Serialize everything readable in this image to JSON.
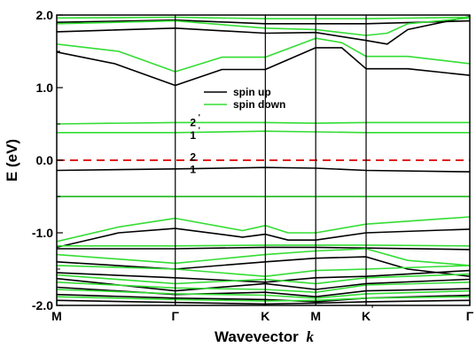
{
  "chart_data": {
    "type": "line",
    "xlabel": "Wavevector",
    "xlabel_italic": "k",
    "ylabel": "E (eV)",
    "ylim": [
      -2.0,
      2.0
    ],
    "yticks": [
      {
        "value": 2.0,
        "label": "2.0"
      },
      {
        "value": 1.0,
        "label": "1.0"
      },
      {
        "value": 0.0,
        "label": "0.0"
      },
      {
        "value": -1.0,
        "label": "-1.0"
      },
      {
        "value": -2.0,
        "label": "-2.0"
      }
    ],
    "xlim": [
      0,
      1
    ],
    "kpoints": [
      {
        "x": 0.0,
        "label": "M",
        "prime": ""
      },
      {
        "x": 0.287,
        "label": "Γ",
        "prime": ""
      },
      {
        "x": 0.505,
        "label": "K",
        "prime": ""
      },
      {
        "x": 0.627,
        "label": "M",
        "prime": ""
      },
      {
        "x": 0.749,
        "label": "K",
        "prime": "'"
      },
      {
        "x": 1.0,
        "label": "Γ",
        "prime": ""
      }
    ],
    "fermi_level": 0.0,
    "legend": {
      "position": "upper-right-inside",
      "entries": [
        {
          "name": "spin up",
          "color": "#000000"
        },
        {
          "name": "spin down",
          "color": "#33dd33"
        }
      ]
    },
    "annotations": [
      {
        "text": "2",
        "prime": "'",
        "x": 0.33,
        "y": 0.52
      },
      {
        "text": "1",
        "prime": "'",
        "x": 0.33,
        "y": 0.34
      },
      {
        "text": "2",
        "prime": "",
        "x": 0.33,
        "y": 0.04
      },
      {
        "text": "1",
        "prime": "",
        "x": 0.33,
        "y": -0.13
      }
    ],
    "series": [
      {
        "name": "spin up",
        "color": "#000000",
        "x": [
          0,
          0.14,
          0.287,
          0.4,
          0.505,
          0.627,
          0.69,
          0.749,
          0.85,
          1.0
        ],
        "y": [
          1.49,
          1.33,
          1.03,
          1.25,
          1.25,
          1.55,
          1.55,
          1.26,
          1.26,
          1.17
        ]
      },
      {
        "name": "spin up",
        "color": "#000000",
        "x": [
          0,
          0.287,
          0.505,
          0.627,
          0.749,
          0.8,
          0.85,
          1.0
        ],
        "y": [
          1.77,
          1.82,
          1.75,
          1.76,
          1.65,
          1.6,
          1.8,
          1.98
        ]
      },
      {
        "name": "spin up",
        "color": "#000000",
        "x": [
          0,
          0.287,
          0.505,
          0.627,
          0.749,
          1.0
        ],
        "y": [
          1.9,
          1.93,
          1.88,
          1.88,
          1.88,
          1.92
        ]
      },
      {
        "name": "spin up",
        "color": "#000000",
        "x": [
          0,
          0.287,
          0.505,
          0.627,
          0.749,
          1.0
        ],
        "y": [
          -0.14,
          -0.12,
          -0.1,
          -0.11,
          -0.14,
          -0.16
        ]
      },
      {
        "name": "spin up",
        "color": "#000000",
        "x": [
          0,
          0.287,
          0.505,
          0.627,
          0.749,
          1.0
        ],
        "y": [
          -0.5,
          -0.5,
          -0.5,
          -0.5,
          -0.5,
          -0.5
        ]
      },
      {
        "name": "spin up",
        "color": "#000000",
        "x": [
          0,
          0.15,
          0.287,
          0.45,
          0.505,
          0.56,
          0.627,
          0.749,
          1.0
        ],
        "y": [
          -1.2,
          -1.0,
          -0.94,
          -1.06,
          -1.02,
          -1.1,
          -1.1,
          -1.0,
          -0.95
        ]
      },
      {
        "name": "spin up",
        "color": "#000000",
        "x": [
          0,
          0.287,
          0.505,
          0.627,
          0.749,
          1.0
        ],
        "y": [
          -1.22,
          -1.22,
          -1.2,
          -1.2,
          -1.21,
          -1.23
        ]
      },
      {
        "name": "spin up",
        "color": "#000000",
        "x": [
          0,
          0.287,
          0.505,
          0.627,
          0.749,
          0.85,
          1.0
        ],
        "y": [
          -1.4,
          -1.5,
          -1.4,
          -1.35,
          -1.33,
          -1.5,
          -1.6
        ]
      },
      {
        "name": "spin up",
        "color": "#000000",
        "x": [
          0,
          0.287,
          0.505,
          0.627,
          0.749,
          1.0
        ],
        "y": [
          -1.55,
          -1.62,
          -1.68,
          -1.62,
          -1.6,
          -1.52
        ]
      },
      {
        "name": "spin up",
        "color": "#000000",
        "x": [
          0,
          0.287,
          0.505,
          0.627,
          0.749,
          1.0
        ],
        "y": [
          -1.63,
          -1.8,
          -1.7,
          -1.78,
          -1.7,
          -1.64
        ]
      },
      {
        "name": "spin up",
        "color": "#000000",
        "x": [
          0,
          0.287,
          0.505,
          0.627,
          0.749,
          1.0
        ],
        "y": [
          -1.75,
          -1.85,
          -1.82,
          -1.88,
          -1.8,
          -1.77
        ]
      },
      {
        "name": "spin up",
        "color": "#000000",
        "x": [
          0,
          0.287,
          0.505,
          0.627,
          0.749,
          1.0
        ],
        "y": [
          -1.85,
          -1.9,
          -1.92,
          -1.95,
          -1.9,
          -1.86
        ]
      },
      {
        "name": "spin up",
        "color": "#000000",
        "x": [
          0,
          0.287,
          0.505,
          0.627,
          0.749,
          1.0
        ],
        "y": [
          -1.93,
          -1.96,
          -1.98,
          -1.97,
          -1.95,
          -1.93
        ]
      },
      {
        "name": "spin down",
        "color": "#33dd33",
        "x": [
          0,
          0.15,
          0.287,
          0.4,
          0.505,
          0.627,
          0.69,
          0.749,
          0.85,
          1.0
        ],
        "y": [
          1.6,
          1.5,
          1.22,
          1.42,
          1.42,
          1.68,
          1.62,
          1.43,
          1.43,
          1.33
        ]
      },
      {
        "name": "spin down",
        "color": "#33dd33",
        "x": [
          0,
          0.287,
          0.505,
          0.627,
          0.749,
          0.8,
          0.85,
          1.0
        ],
        "y": [
          1.88,
          1.92,
          1.82,
          1.8,
          1.72,
          1.75,
          1.88,
          1.96
        ]
      },
      {
        "name": "spin down",
        "color": "#33dd33",
        "x": [
          0,
          0.287,
          0.505,
          0.627,
          0.749,
          1.0
        ],
        "y": [
          1.96,
          1.97,
          1.95,
          1.95,
          1.95,
          1.97
        ]
      },
      {
        "name": "spin down",
        "color": "#33dd33",
        "x": [
          0,
          0.287,
          0.505,
          0.627,
          0.749,
          1.0
        ],
        "y": [
          0.5,
          0.52,
          0.52,
          0.51,
          0.52,
          0.52
        ]
      },
      {
        "name": "spin down",
        "color": "#33dd33",
        "x": [
          0,
          0.287,
          0.505,
          0.627,
          0.749,
          1.0
        ],
        "y": [
          0.38,
          0.38,
          0.4,
          0.39,
          0.38,
          0.38
        ]
      },
      {
        "name": "spin down",
        "color": "#33dd33",
        "x": [
          0,
          0.287,
          0.505,
          0.627,
          0.749,
          1.0
        ],
        "y": [
          -0.5,
          -0.5,
          -0.5,
          -0.5,
          -0.5,
          -0.5
        ]
      },
      {
        "name": "spin down",
        "color": "#33dd33",
        "x": [
          0,
          0.15,
          0.287,
          0.45,
          0.505,
          0.56,
          0.627,
          0.749,
          1.0
        ],
        "y": [
          -1.12,
          -0.92,
          -0.8,
          -0.97,
          -0.9,
          -1.0,
          -1.0,
          -0.88,
          -0.78
        ]
      },
      {
        "name": "spin down",
        "color": "#33dd33",
        "x": [
          0,
          0.287,
          0.505,
          0.627,
          0.749,
          1.0
        ],
        "y": [
          -1.18,
          -1.18,
          -1.17,
          -1.17,
          -1.17,
          -1.18
        ]
      },
      {
        "name": "spin down",
        "color": "#33dd33",
        "x": [
          0,
          0.287,
          0.505,
          0.627,
          0.749,
          0.85,
          1.0
        ],
        "y": [
          -1.3,
          -1.42,
          -1.3,
          -1.25,
          -1.22,
          -1.38,
          -1.45
        ]
      },
      {
        "name": "spin down",
        "color": "#33dd33",
        "x": [
          0,
          0.287,
          0.505,
          0.627,
          0.749,
          1.0
        ],
        "y": [
          -1.45,
          -1.5,
          -1.6,
          -1.52,
          -1.5,
          -1.45
        ]
      },
      {
        "name": "spin down",
        "color": "#33dd33",
        "x": [
          0,
          0.287,
          0.505,
          0.627,
          0.749,
          1.0
        ],
        "y": [
          -1.58,
          -1.7,
          -1.64,
          -1.7,
          -1.62,
          -1.57
        ]
      },
      {
        "name": "spin down",
        "color": "#33dd33",
        "x": [
          0,
          0.287,
          0.505,
          0.627,
          0.749,
          1.0
        ],
        "y": [
          -1.68,
          -1.76,
          -1.78,
          -1.82,
          -1.72,
          -1.68
        ]
      },
      {
        "name": "spin down",
        "color": "#33dd33",
        "x": [
          0,
          0.287,
          0.505,
          0.627,
          0.749,
          1.0
        ],
        "y": [
          -1.78,
          -1.84,
          -1.86,
          -1.9,
          -1.84,
          -1.8
        ]
      },
      {
        "name": "spin down",
        "color": "#33dd33",
        "x": [
          0,
          0.287,
          0.505,
          0.627,
          0.749,
          1.0
        ],
        "y": [
          -1.88,
          -1.92,
          -1.94,
          -1.93,
          -1.9,
          -1.88
        ]
      }
    ]
  }
}
